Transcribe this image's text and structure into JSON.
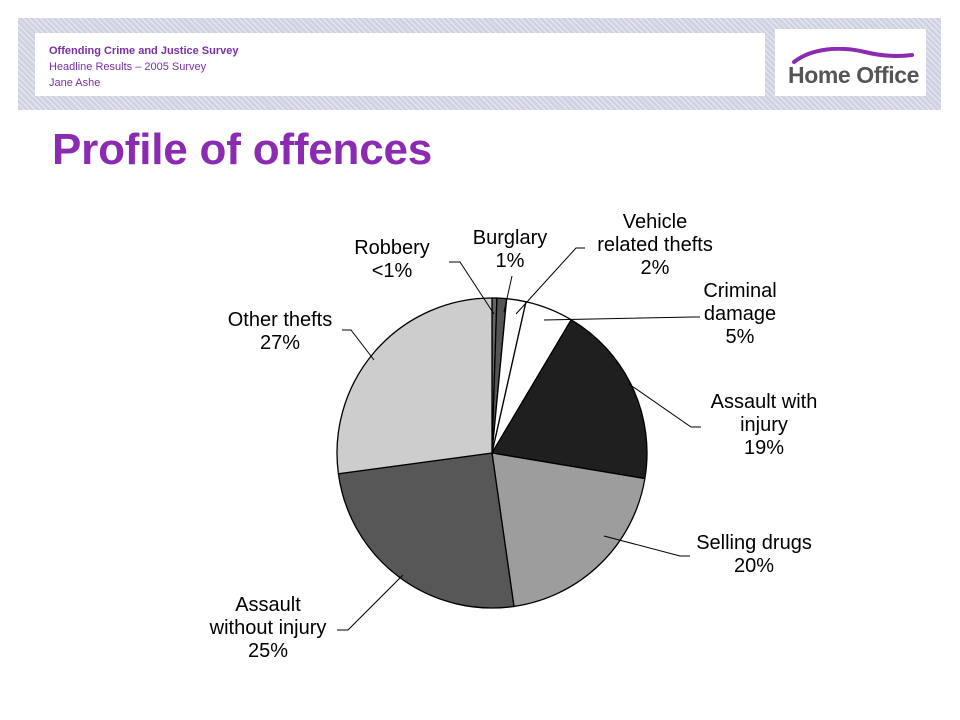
{
  "header": {
    "survey_title": "Offending Crime and Justice Survey",
    "subtitle": "Headline Results – 2005 Survey",
    "author": "Jane Ashe",
    "logo_text": "Home Office",
    "brand_color": "#8b2bb2",
    "header_band_color": "#cfd2e3"
  },
  "page": {
    "title": "Profile of offences"
  },
  "chart_data": {
    "type": "pie",
    "title": "",
    "legend": "none",
    "units": "%",
    "slices": [
      {
        "name": "Robbery",
        "value": 0.5,
        "display_label": "<1%",
        "color": "#666666"
      },
      {
        "name": "Burglary",
        "value": 1,
        "display_label": "1%",
        "color": "#555555"
      },
      {
        "name": "Vehicle related thefts",
        "value": 2,
        "display_label": "2%",
        "color": "#ffffff"
      },
      {
        "name": "Criminal damage",
        "value": 5,
        "display_label": "5%",
        "color": "#ffffff"
      },
      {
        "name": "Assault with injury",
        "value": 19,
        "display_label": "19%",
        "color": "#1f1f1f"
      },
      {
        "name": "Selling drugs",
        "value": 20,
        "display_label": "20%",
        "color": "#9d9d9d"
      },
      {
        "name": "Assault without injury",
        "value": 25,
        "display_label": "25%",
        "color": "#575757"
      },
      {
        "name": "Other thefts",
        "value": 27,
        "display_label": "27%",
        "color": "#cdcdcd"
      }
    ]
  }
}
